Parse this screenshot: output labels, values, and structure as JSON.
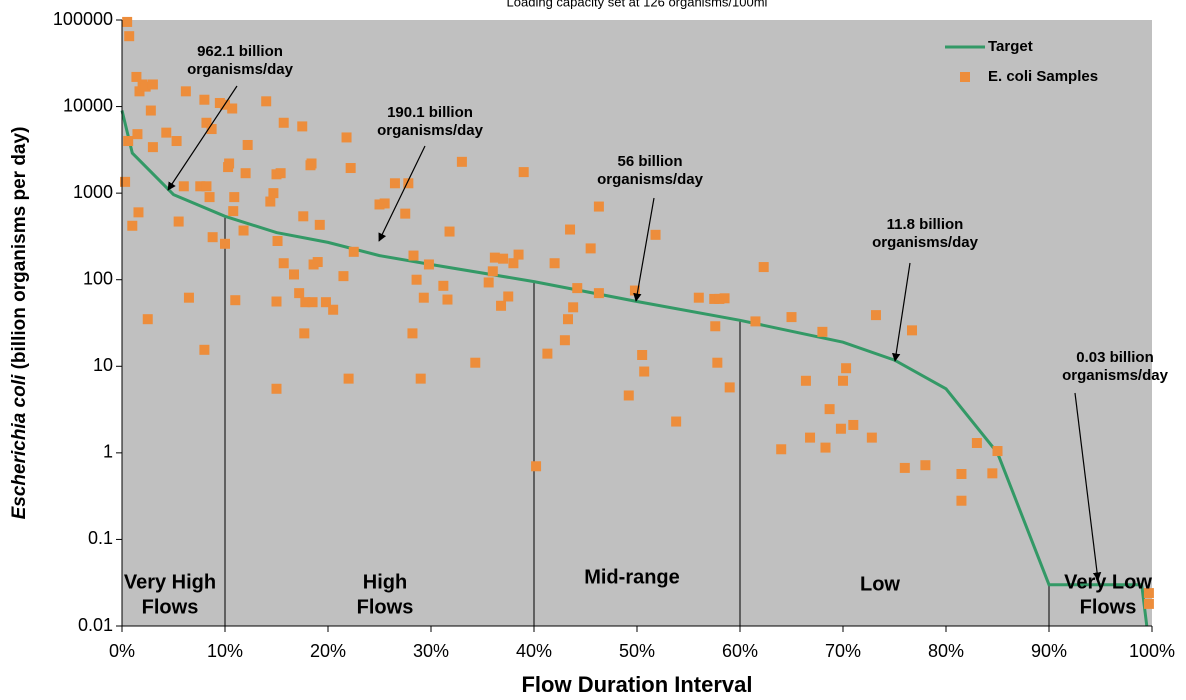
{
  "chart_data": {
    "type": "line",
    "subtitle": "Loading capacity set at 126 organisms/100ml",
    "xlabel": "Flow Duration Interval",
    "ylabel": [
      "Escherichia coli",
      " (billion organisms per day)"
    ],
    "log_y": true,
    "background": "#c0c0c0",
    "legend": "top-right",
    "xlim": [
      0,
      100
    ],
    "xticks": [
      {
        "value": 0,
        "label": "0%"
      },
      {
        "value": 10,
        "label": "10%"
      },
      {
        "value": 20,
        "label": "20%"
      },
      {
        "value": 30,
        "label": "30%"
      },
      {
        "value": 40,
        "label": "40%"
      },
      {
        "value": 50,
        "label": "50%"
      },
      {
        "value": 60,
        "label": "60%"
      },
      {
        "value": 70,
        "label": "70%"
      },
      {
        "value": 80,
        "label": "80%"
      },
      {
        "value": 90,
        "label": "90%"
      },
      {
        "value": 100,
        "label": "100%"
      }
    ],
    "ylim": [
      0.01,
      100000
    ],
    "yticks": [
      0.01,
      0.1,
      1,
      10,
      100,
      1000,
      10000,
      100000
    ],
    "dividers": [
      10,
      40,
      60,
      90
    ],
    "zones": [
      [
        "Very High",
        "Flows"
      ],
      [
        "High",
        "Flows"
      ],
      [
        "Mid-range"
      ],
      [
        "Low"
      ],
      [
        "Very Low",
        "Flows"
      ]
    ],
    "annotations": [
      [
        "962.1 billion",
        "organisms/day"
      ],
      [
        "190.1 billion",
        "organisms/day"
      ],
      [
        "56 billion",
        "organisms/day"
      ],
      [
        "11.8 billion",
        "organisms/day"
      ],
      [
        "0.03 billion",
        "organisms/day"
      ]
    ],
    "series": [
      {
        "name": "Target",
        "type": "line",
        "color": "#339966",
        "x": [
          0,
          1,
          5,
          10,
          15,
          20,
          25,
          30,
          40,
          50,
          60,
          70,
          75,
          80,
          85,
          90,
          99,
          99.5
        ],
        "values": [
          9000,
          2900,
          962.1,
          540,
          350,
          270,
          190.1,
          150,
          95,
          56,
          34,
          19,
          11.8,
          5.5,
          1,
          0.03,
          0.03,
          0.01
        ]
      },
      {
        "name": "E. coli Samples",
        "type": "scatter",
        "color": "#ed8d3b",
        "x": [
          0.3,
          0.5,
          0.6,
          0.7,
          1,
          1.4,
          1.5,
          1.6,
          1.7,
          2,
          2.3,
          2.5,
          2.8,
          3,
          3,
          4.3,
          5.3,
          5.5,
          6,
          6.2,
          6.5,
          7.6,
          8,
          8,
          8.2,
          8.2,
          8.5,
          8.7,
          8.8,
          9.5,
          10,
          10,
          10.3,
          10.4,
          10.7,
          10.8,
          10.9,
          11,
          11.8,
          12,
          12.2,
          14,
          14.4,
          14.7,
          15,
          15,
          15,
          15.1,
          15.4,
          15.7,
          15.7,
          16.7,
          17.2,
          17.5,
          17.6,
          17.7,
          17.8,
          18.3,
          18.4,
          18.5,
          18.6,
          19,
          19.2,
          19.8,
          20.5,
          21.5,
          21.8,
          22,
          22.2,
          22.5,
          25,
          25.5,
          26.5,
          27.5,
          27.8,
          28.2,
          28.3,
          28.6,
          29,
          29.3,
          29.8,
          31.2,
          31.6,
          31.8,
          33,
          34.3,
          35.6,
          36,
          36.2,
          36.8,
          37,
          37.5,
          38,
          38.5,
          39,
          40.2,
          41.3,
          42,
          43,
          43.3,
          43.5,
          43.8,
          44.2,
          45.5,
          46.3,
          46.3,
          49.2,
          49.8,
          50.5,
          50.7,
          51.8,
          53.8,
          56,
          57.5,
          57.6,
          57.8,
          58,
          58.5,
          59,
          61.5,
          62.3,
          64,
          65,
          66.4,
          66.8,
          68,
          68.3,
          68.7,
          69.8,
          70,
          70.3,
          71,
          72.8,
          73.2,
          76,
          76.7,
          78,
          81.5,
          81.5,
          83,
          84.5,
          85,
          99.7,
          99.7
        ],
        "values": [
          1350,
          95000,
          4000,
          65000,
          420,
          22000,
          4800,
          600,
          15000,
          18000,
          17000,
          35,
          9000,
          18000,
          3400,
          5000,
          4000,
          470,
          1200,
          15000,
          62,
          1200,
          15.5,
          12000,
          6500,
          1200,
          900,
          5500,
          310,
          11000,
          10500,
          260,
          2000,
          2200,
          9500,
          620,
          900,
          58,
          370,
          1700,
          3600,
          11500,
          800,
          1000,
          1650,
          56,
          5.5,
          280,
          1700,
          6500,
          155,
          115,
          70,
          5900,
          540,
          24,
          55,
          2100,
          2200,
          55,
          150,
          160,
          430,
          55,
          45,
          110,
          4400,
          7.2,
          1950,
          210,
          740,
          760,
          1300,
          580,
          1300,
          24,
          190,
          100,
          7.2,
          62,
          150,
          85,
          59,
          360,
          2300,
          11,
          93,
          125,
          180,
          50,
          175,
          64,
          155,
          195,
          1750,
          0.7,
          14,
          155,
          20,
          35,
          380,
          48,
          80,
          230,
          700,
          70,
          4.6,
          75,
          13.5,
          8.7,
          330,
          2.3,
          62,
          60,
          29,
          11,
          60,
          61,
          5.7,
          33,
          140,
          1.1,
          37,
          6.8,
          1.5,
          25,
          1.15,
          3.2,
          1.9,
          6.8,
          9.5,
          2.1,
          1.5,
          39,
          0.67,
          26,
          0.72,
          0.57,
          0.28,
          1.3,
          0.58,
          1.05,
          0.024,
          0.018
        ]
      }
    ]
  }
}
